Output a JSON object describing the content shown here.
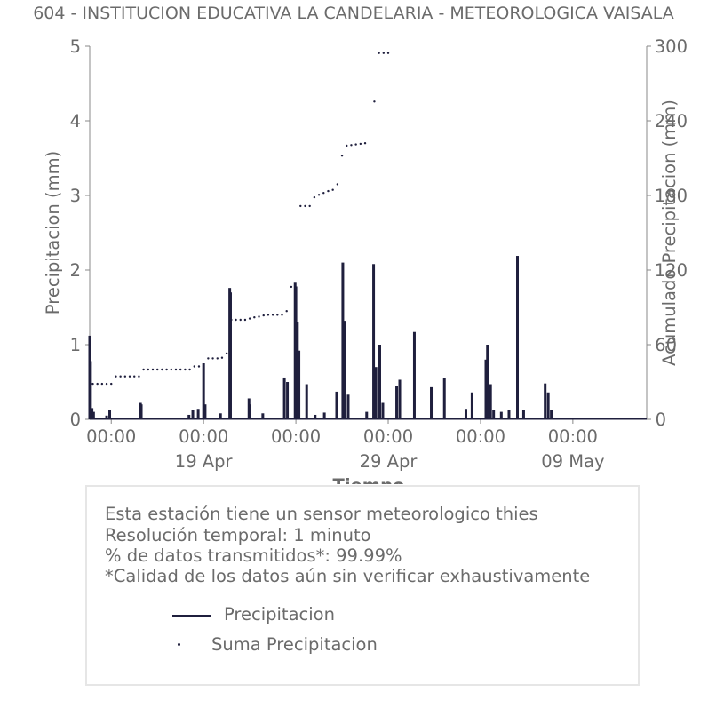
{
  "chart_data": {
    "type": "bar",
    "title": "604 - INSTITUCION EDUCATIVA LA CANDELARIA - METEOROLOGICA VAISALA",
    "xlabel": "Tiempo",
    "ylabel": "Precipitacion (mm)",
    "y2label": "Acumulado Precipitacion (mm)",
    "ylim": [
      0,
      5
    ],
    "y2lim": [
      0,
      300
    ],
    "yticks": [
      "0",
      "1",
      "2",
      "3",
      "4",
      "5"
    ],
    "y2ticks": [
      "0",
      "60",
      "120",
      "180",
      "240",
      "300"
    ],
    "xlim": [
      "2025-04-12T20:00",
      "2025-05-13T00:00"
    ],
    "xticks": [
      {
        "x": "2025-04-14T00:00",
        "label": "00:00"
      },
      {
        "x": "2025-04-19T00:00",
        "label": "00:00"
      },
      {
        "x": "2025-04-24T00:00",
        "label": "00:00"
      },
      {
        "x": "2025-04-29T00:00",
        "label": "00:00"
      },
      {
        "x": "2025-05-04T00:00",
        "label": "00:00"
      },
      {
        "x": "2025-05-09T00:00",
        "label": "00:00"
      }
    ],
    "xticks_major": [
      {
        "x": "2025-04-19T00:00",
        "label": "19 Apr"
      },
      {
        "x": "2025-04-29T00:00",
        "label": "29 Apr"
      },
      {
        "x": "2025-05-09T00:00",
        "label": "09 May"
      }
    ],
    "grid": false,
    "series": [
      {
        "name": "Precipitacion",
        "type": "bar",
        "axis": "left",
        "color": "#1f1f3d",
        "points": [
          [
            "2025-04-12T20:00",
            1.12
          ],
          [
            "2025-04-12T21:00",
            0.78
          ],
          [
            "2025-04-12T23:00",
            0.15
          ],
          [
            "2025-04-13T01:00",
            0.1
          ],
          [
            "2025-04-13T18:00",
            0.05
          ],
          [
            "2025-04-13T22:00",
            0.12
          ],
          [
            "2025-04-15T14:00",
            0.22
          ],
          [
            "2025-04-15T15:00",
            0.2
          ],
          [
            "2025-04-18T05:00",
            0.06
          ],
          [
            "2025-04-18T10:00",
            0.12
          ],
          [
            "2025-04-18T17:00",
            0.14
          ],
          [
            "2025-04-19T00:00",
            0.75
          ],
          [
            "2025-04-19T02:00",
            0.2
          ],
          [
            "2025-04-19T22:00",
            0.08
          ],
          [
            "2025-04-20T10:00",
            1.76
          ],
          [
            "2025-04-20T11:00",
            1.7
          ],
          [
            "2025-04-21T11:00",
            0.28
          ],
          [
            "2025-04-21T12:00",
            0.2
          ],
          [
            "2025-04-22T05:00",
            0.08
          ],
          [
            "2025-04-23T09:00",
            0.56
          ],
          [
            "2025-04-23T13:00",
            0.5
          ],
          [
            "2025-04-23T23:00",
            1.83
          ],
          [
            "2025-04-24T00:00",
            1.78
          ],
          [
            "2025-04-24T02:00",
            1.3
          ],
          [
            "2025-04-24T04:00",
            0.92
          ],
          [
            "2025-04-24T14:00",
            0.47
          ],
          [
            "2025-04-25T01:00",
            0.06
          ],
          [
            "2025-04-25T13:00",
            0.09
          ],
          [
            "2025-04-26T05:00",
            0.37
          ],
          [
            "2025-04-26T13:00",
            2.1
          ],
          [
            "2025-04-26T15:00",
            1.32
          ],
          [
            "2025-04-26T20:00",
            0.33
          ],
          [
            "2025-04-27T20:00",
            0.1
          ],
          [
            "2025-04-28T05:00",
            2.08
          ],
          [
            "2025-04-28T08:00",
            0.7
          ],
          [
            "2025-04-28T13:00",
            1.0
          ],
          [
            "2025-04-28T17:00",
            0.22
          ],
          [
            "2025-04-29T11:00",
            0.45
          ],
          [
            "2025-04-29T15:00",
            0.53
          ],
          [
            "2025-04-30T10:00",
            1.17
          ],
          [
            "2025-05-01T08:00",
            0.43
          ],
          [
            "2025-05-02T01:00",
            0.55
          ],
          [
            "2025-05-03T05:00",
            0.14
          ],
          [
            "2025-05-03T13:00",
            0.36
          ],
          [
            "2025-05-04T07:00",
            0.8
          ],
          [
            "2025-05-04T09:00",
            1.0
          ],
          [
            "2025-05-04T13:00",
            0.47
          ],
          [
            "2025-05-04T17:00",
            0.13
          ],
          [
            "2025-05-05T03:00",
            0.1
          ],
          [
            "2025-05-05T13:00",
            0.12
          ],
          [
            "2025-05-06T00:00",
            2.19
          ],
          [
            "2025-05-06T08:00",
            0.13
          ],
          [
            "2025-05-07T12:00",
            0.48
          ],
          [
            "2025-05-07T16:00",
            0.36
          ],
          [
            "2025-05-07T20:00",
            0.12
          ]
        ]
      },
      {
        "name": "Suma Precipitacion",
        "type": "scatter",
        "axis": "right",
        "color": "#1f1f3d",
        "points": [
          [
            "2025-04-13T00:00",
            28.5
          ],
          [
            "2025-04-13T06:00",
            28.5
          ],
          [
            "2025-04-13T12:00",
            28.5
          ],
          [
            "2025-04-13T18:00",
            28.5
          ],
          [
            "2025-04-14T00:00",
            28.5
          ],
          [
            "2025-04-14T06:00",
            34.5
          ],
          [
            "2025-04-14T12:00",
            34.5
          ],
          [
            "2025-04-14T18:00",
            34.5
          ],
          [
            "2025-04-15T00:00",
            34.5
          ],
          [
            "2025-04-15T06:00",
            34.5
          ],
          [
            "2025-04-15T12:00",
            34.5
          ],
          [
            "2025-04-15T18:00",
            40.0
          ],
          [
            "2025-04-16T00:00",
            40.0
          ],
          [
            "2025-04-16T06:00",
            40.0
          ],
          [
            "2025-04-16T12:00",
            40.0
          ],
          [
            "2025-04-16T18:00",
            40.0
          ],
          [
            "2025-04-17T00:00",
            40.0
          ],
          [
            "2025-04-17T06:00",
            40.0
          ],
          [
            "2025-04-17T12:00",
            40.0
          ],
          [
            "2025-04-17T18:00",
            40.0
          ],
          [
            "2025-04-18T00:00",
            40.0
          ],
          [
            "2025-04-18T06:00",
            40.0
          ],
          [
            "2025-04-18T12:00",
            42.5
          ],
          [
            "2025-04-18T18:00",
            42.5
          ],
          [
            "2025-04-19T00:00",
            42.5
          ],
          [
            "2025-04-19T06:00",
            49.0
          ],
          [
            "2025-04-19T12:00",
            49.0
          ],
          [
            "2025-04-19T18:00",
            49.0
          ],
          [
            "2025-04-20T00:00",
            49.5
          ],
          [
            "2025-04-20T06:00",
            53.0
          ],
          [
            "2025-04-20T12:00",
            80.0
          ],
          [
            "2025-04-20T18:00",
            80.0
          ],
          [
            "2025-04-21T00:00",
            80.0
          ],
          [
            "2025-04-21T06:00",
            80.0
          ],
          [
            "2025-04-21T12:00",
            81.0
          ],
          [
            "2025-04-21T18:00",
            82.0
          ],
          [
            "2025-04-22T00:00",
            82.5
          ],
          [
            "2025-04-22T06:00",
            83.5
          ],
          [
            "2025-04-22T12:00",
            84.0
          ],
          [
            "2025-04-22T18:00",
            84.0
          ],
          [
            "2025-04-23T00:00",
            84.0
          ],
          [
            "2025-04-23T06:00",
            84.0
          ],
          [
            "2025-04-23T12:00",
            87.0
          ],
          [
            "2025-04-23T18:00",
            106.5
          ],
          [
            "2025-04-24T06:00",
            171.5
          ],
          [
            "2025-04-24T12:00",
            171.5
          ],
          [
            "2025-04-24T18:00",
            171.5
          ],
          [
            "2025-04-25T00:00",
            178.5
          ],
          [
            "2025-04-25T06:00",
            180.5
          ],
          [
            "2025-04-25T12:00",
            182.0
          ],
          [
            "2025-04-25T18:00",
            183.5
          ],
          [
            "2025-04-26T00:00",
            184.5
          ],
          [
            "2025-04-26T06:00",
            189.0
          ],
          [
            "2025-04-26T12:00",
            212.0
          ],
          [
            "2025-04-26T18:00",
            220.0
          ],
          [
            "2025-04-27T00:00",
            220.5
          ],
          [
            "2025-04-27T06:00",
            221.0
          ],
          [
            "2025-04-27T12:00",
            221.5
          ],
          [
            "2025-04-27T18:00",
            222.0
          ],
          [
            "2025-04-28T06:00",
            255.5
          ],
          [
            "2025-04-28T12:00",
            294.5
          ],
          [
            "2025-04-28T18:00",
            294.5
          ],
          [
            "2025-04-29T00:00",
            294.5
          ]
        ]
      }
    ],
    "legend_position": "bottom-inside-box"
  },
  "info": {
    "line1": "Esta estación tiene un sensor meteorologico thies",
    "line2": "Resolución temporal: 1 minuto",
    "line3": "% de datos transmitidos*: 99.99%",
    "line4": "*Calidad de los datos aún sin verificar exhaustivamente"
  },
  "legend": {
    "line_label": "Precipitacion",
    "dots_label": "Suma Precipitacion"
  }
}
